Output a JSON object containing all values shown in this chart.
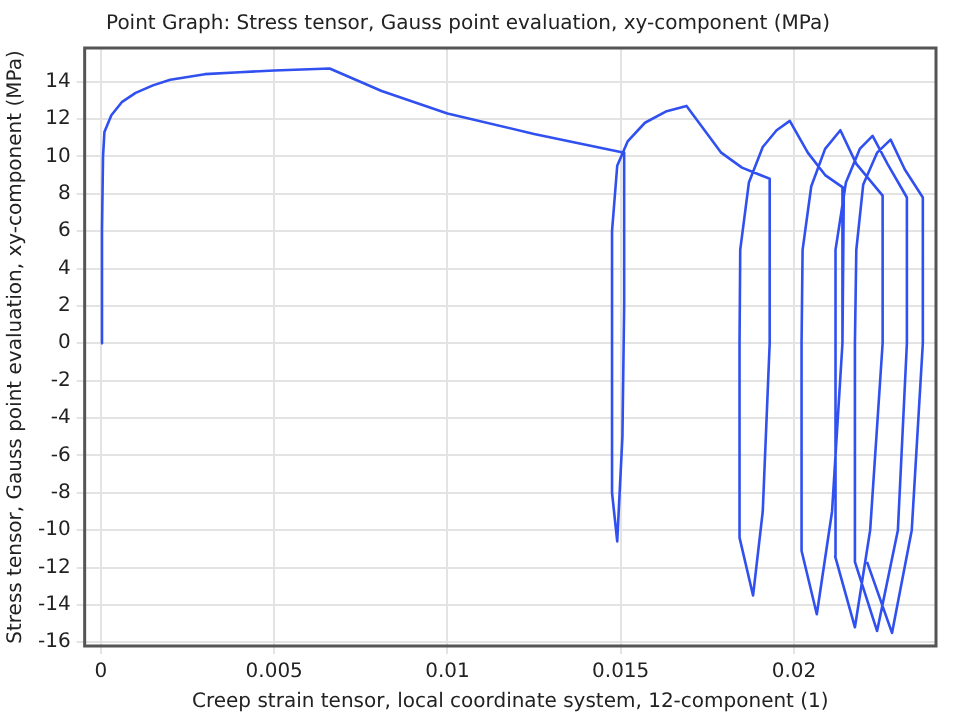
{
  "chart_data": {
    "type": "line",
    "title": "Point Graph: Stress tensor, Gauss point evaluation, xy-component (MPa)",
    "xlabel": "Creep strain tensor, local coordinate system, 12-component (1)",
    "ylabel": "Stress tensor, Gauss point evaluation, xy-component (MPa)",
    "x": [
      0,
      3e-05,
      6e-05,
      0.0001,
      0.0003,
      0.0006,
      0.001,
      0.0015,
      0.002,
      0.003,
      0.004,
      0.005,
      0.0066,
      0.0081,
      0.01,
      0.0125,
      0.0151,
      0.0151,
      0.01505,
      0.0149,
      0.01475,
      0.01475,
      0.0149,
      0.0152,
      0.0157,
      0.0163,
      0.0169,
      0.0175,
      0.0179,
      0.0185,
      0.0193,
      0.0193,
      0.0191,
      0.01882,
      0.01843,
      0.01843,
      0.01845,
      0.0187,
      0.0191,
      0.0195,
      0.01988,
      0.0204,
      0.0209,
      0.02144,
      0.0214,
      0.0211,
      0.02066,
      0.02022,
      0.02022,
      0.02025,
      0.0205,
      0.0209,
      0.02134,
      0.0218,
      0.02256,
      0.02256,
      0.0222,
      0.02176,
      0.02119,
      0.0212,
      0.0215,
      0.0219,
      0.02227,
      0.0227,
      0.02326,
      0.02326,
      0.023,
      0.0224,
      0.02176,
      0.02176,
      0.0218,
      0.022,
      0.0224,
      0.02279,
      0.0232,
      0.02372,
      0.02372,
      0.0234,
      0.02283,
      0.02211
    ],
    "series": [
      {
        "color": "#3050f0",
        "values": [
          0,
          6,
          10,
          11.3,
          12.2,
          12.9,
          13.4,
          13.8,
          14.1,
          14.4,
          14.5,
          14.6,
          14.7,
          13.5,
          12.3,
          11.2,
          10.2,
          2,
          -5,
          -10.6,
          -8,
          6,
          9.5,
          10.8,
          11.8,
          12.4,
          12.7,
          11.2,
          10.2,
          9.4,
          8.8,
          0,
          -9,
          -13.5,
          -10.4,
          0,
          5,
          8.6,
          10.5,
          11.4,
          11.9,
          10.2,
          9,
          8.3,
          0,
          -9,
          -14.5,
          -11.1,
          0,
          5,
          8.4,
          10.4,
          11.4,
          9.6,
          7.9,
          0,
          -10,
          -15.2,
          -11.4,
          5,
          8.6,
          10.4,
          11.1,
          9.6,
          7.8,
          0,
          -10,
          -15.4,
          -11.7,
          0,
          5,
          8.5,
          10.2,
          10.9,
          9.3,
          7.8,
          0,
          -10,
          -15.5,
          -11.7
        ]
      }
    ],
    "xlim": [
      -0.00047,
      0.0241
    ],
    "ylim": [
      -16.2,
      15.8
    ],
    "xticks": [
      0,
      0.005,
      0.01,
      0.015,
      0.02
    ],
    "yticks": [
      -16,
      -14,
      -12,
      -10,
      -8,
      -6,
      -4,
      -2,
      0,
      2,
      4,
      6,
      8,
      10,
      12,
      14
    ],
    "grid": true,
    "marker": "none",
    "line_style": "solid",
    "legend": false
  }
}
